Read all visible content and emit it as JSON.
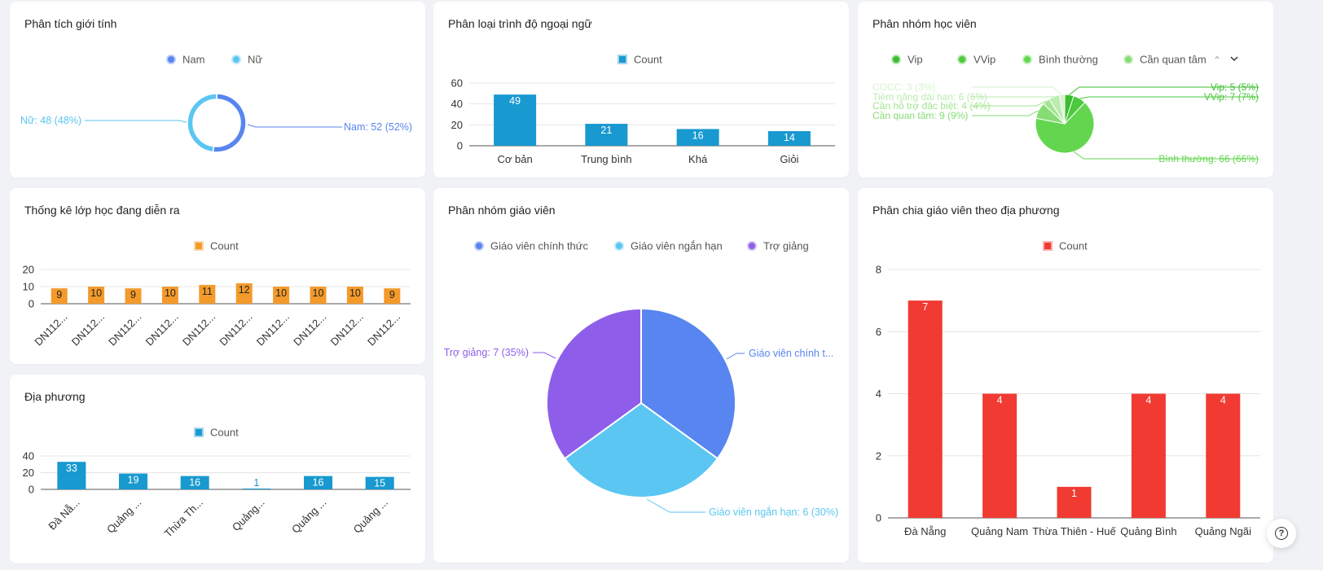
{
  "help_icon_label": "?",
  "chart_data": [
    {
      "id": "gender",
      "type": "pie",
      "title": "Phân tích giới tính",
      "donut": true,
      "legend": [
        "Nam",
        "Nữ"
      ],
      "colors": [
        "#5885ef",
        "#5bc6f2"
      ],
      "slices": [
        {
          "label": "Nam",
          "value": 52,
          "text": "Nam: 52 (52%)"
        },
        {
          "label": "Nữ",
          "value": 48,
          "text": "Nữ: 48 (48%)"
        }
      ]
    },
    {
      "id": "language",
      "type": "bar",
      "title": "Phân loại trình độ ngoại ngữ",
      "legend": [
        "Count"
      ],
      "color": "#1899d0",
      "categories": [
        "Cơ bản",
        "Trung bình",
        "Khá",
        "Giỏi"
      ],
      "values": [
        49,
        21,
        16,
        14
      ],
      "yticks": [
        0,
        20,
        40,
        60
      ],
      "ylim": [
        0,
        60
      ]
    },
    {
      "id": "student_groups",
      "type": "pie",
      "title": "Phân nhóm học viên",
      "legend": [
        "Vip",
        "VVip",
        "Bình thường",
        "Cần quan tâm"
      ],
      "slices": [
        {
          "label": "Vip",
          "value": 5,
          "text": "Vip: 5 (5%)",
          "color": "#3bbd2f"
        },
        {
          "label": "VVip",
          "value": 7,
          "text": "VVip: 7 (7%)",
          "color": "#4cc93c"
        },
        {
          "label": "Bình thường",
          "value": 66,
          "text": "Bình thường: 66 (66%)",
          "color": "#63d650"
        },
        {
          "label": "Cần quan tâm",
          "value": 9,
          "text": "Cần quan tâm: 9 (9%)",
          "color": "#86dd73"
        },
        {
          "label": "Cần hỗ trợ đặc biệt",
          "value": 4,
          "text": "Cần hỗ trợ đặc biệt: 4 (4%)",
          "color": "#a2e592"
        },
        {
          "label": "Tiềm năng dài hạn",
          "value": 6,
          "text": "Tiềm năng dài hạn: 6 (6%)",
          "color": "#bdecb1"
        },
        {
          "label": "COCC",
          "value": 3,
          "text": "COCC: 3 (3%)",
          "color": "#d6f3ce"
        }
      ]
    },
    {
      "id": "classes",
      "type": "bar",
      "title": "Thống kê lớp học đang diễn ra",
      "legend": [
        "Count"
      ],
      "color": "#f39a2b",
      "categories": [
        "DN112...",
        "DN112...",
        "DN112...",
        "DN112...",
        "DN112...",
        "DN112...",
        "DN112...",
        "DN112...",
        "DN112...",
        "DN112..."
      ],
      "values": [
        9,
        10,
        9,
        10,
        11,
        12,
        10,
        10,
        10,
        9
      ],
      "yticks": [
        0,
        10,
        20
      ],
      "ylim": [
        0,
        20
      ]
    },
    {
      "id": "teacher_groups",
      "type": "pie",
      "title": "Phân nhóm giáo viên",
      "legend": [
        "Giáo viên chính thức",
        "Giáo viên ngắn hạn",
        "Trợ giảng"
      ],
      "colors": [
        "#5885ef",
        "#5bc6f2",
        "#8e5eea"
      ],
      "slices": [
        {
          "label": "Giáo viên chính thức",
          "value": 7,
          "text": "Giáo viên chính t..."
        },
        {
          "label": "Giáo viên ngắn hạn",
          "value": 6,
          "text": "Giáo viên ngắn hạn: 6 (30%)"
        },
        {
          "label": "Trợ giảng",
          "value": 7,
          "text": "Trợ giảng: 7 (35%)"
        }
      ]
    },
    {
      "id": "teacher_regions",
      "type": "bar",
      "title": "Phân chia giáo viên theo địa phương",
      "legend": [
        "Count"
      ],
      "color": "#f03a32",
      "categories": [
        "Đà Nẵng",
        "Quảng Nam",
        "Thừa Thiên - Huế",
        "Quảng Bình",
        "Quảng Ngãi"
      ],
      "values": [
        7,
        4,
        1,
        4,
        4
      ],
      "yticks": [
        0,
        2,
        4,
        6,
        8
      ],
      "ylim": [
        0,
        8
      ]
    },
    {
      "id": "regions",
      "type": "bar",
      "title": "Địa phương",
      "legend": [
        "Count"
      ],
      "color": "#1899d0",
      "categories": [
        "Đà Nẵ...",
        "Quảng ...",
        "Thừa Th...",
        "Quảng...",
        "Quảng ...",
        "Quảng ..."
      ],
      "values": [
        33,
        19,
        16,
        1,
        16,
        15
      ],
      "yticks": [
        0,
        20,
        40
      ],
      "ylim": [
        0,
        40
      ]
    }
  ]
}
